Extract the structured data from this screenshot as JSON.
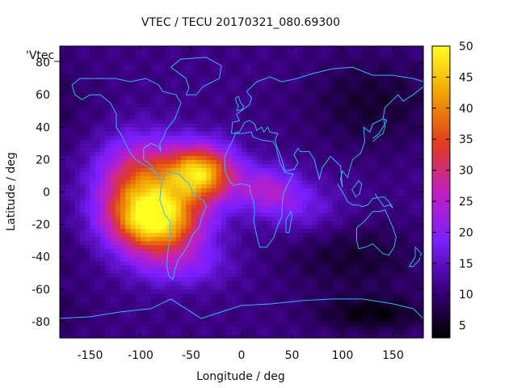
{
  "chart_data": {
    "type": "heatmap",
    "title": "VTEC / TECU 20170321_080.69300",
    "xlabel": "Longitude / deg",
    "ylabel": "Latitude / deg",
    "xlim": [
      -180,
      180
    ],
    "ylim": [
      -90,
      90
    ],
    "x_ticks": [
      "-150",
      "-100",
      "-50",
      "0",
      "50",
      "100",
      "150"
    ],
    "x_tick_values": [
      -150,
      -100,
      -50,
      0,
      50,
      100,
      150
    ],
    "y_ticks": [
      "-80",
      "-60",
      "-40",
      "-20",
      "0",
      "20",
      "40",
      "60",
      "80"
    ],
    "y_tick_values": [
      -80,
      -60,
      -40,
      -20,
      0,
      20,
      40,
      60,
      80
    ],
    "colorbar": {
      "range": [
        3,
        50
      ],
      "ticks": [
        "5",
        "10",
        "15",
        "20",
        "25",
        "30",
        "35",
        "40",
        "45",
        "50"
      ],
      "tick_values": [
        5,
        10,
        15,
        20,
        25,
        30,
        35,
        40,
        45,
        50
      ],
      "palette": [
        "#000000",
        "#3a0080",
        "#7a1fff",
        "#c020c0",
        "#e03c1c",
        "#f0a000",
        "#ffff20"
      ]
    },
    "key_label": "'Vtec_",
    "field": {
      "background": 11,
      "peaks": [
        {
          "lon": -85,
          "lat": -18,
          "amp": 36,
          "sig_lon": 32,
          "sig_lat": 14
        },
        {
          "lon": -40,
          "lat": 12,
          "amp": 33,
          "sig_lon": 24,
          "sig_lat": 12
        },
        {
          "lon": -100,
          "lat": 8,
          "amp": 22,
          "sig_lon": 30,
          "sig_lat": 18
        },
        {
          "lon": 25,
          "lat": 2,
          "amp": 12,
          "sig_lon": 22,
          "sig_lat": 10
        },
        {
          "lon": 60,
          "lat": -10,
          "amp": 6,
          "sig_lon": 30,
          "sig_lat": 12
        },
        {
          "lon": -60,
          "lat": -45,
          "amp": 8,
          "sig_lon": 35,
          "sig_lat": 10
        },
        {
          "lon": 130,
          "lat": 55,
          "amp": -5,
          "sig_lon": 45,
          "sig_lat": 20
        },
        {
          "lon": 110,
          "lat": -40,
          "amp": -5,
          "sig_lon": 50,
          "sig_lat": 15
        },
        {
          "lon": 130,
          "lat": -75,
          "amp": -7,
          "sig_lon": 40,
          "sig_lat": 8
        }
      ]
    },
    "coastline_color": "#3fb0ff"
  }
}
